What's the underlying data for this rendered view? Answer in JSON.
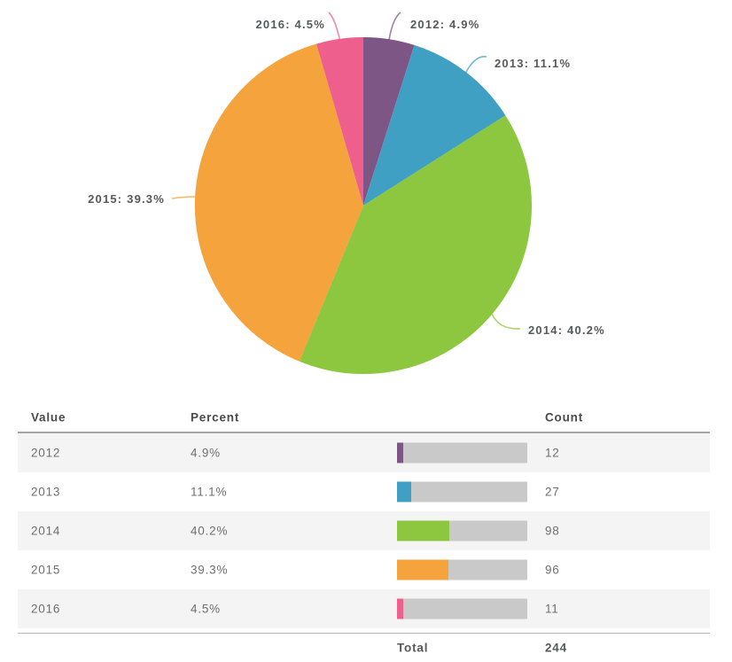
{
  "chart_data": {
    "type": "pie",
    "start_angle_deg": 0,
    "direction": "clockwise",
    "label_format": "{label}: {percent}%",
    "slices": [
      {
        "label": "2012",
        "percent": 4.9,
        "count": 12,
        "color": "#7e5686"
      },
      {
        "label": "2013",
        "percent": 11.1,
        "count": 27,
        "color": "#3fa0c3"
      },
      {
        "label": "2014",
        "percent": 40.2,
        "count": 98,
        "color": "#8dc63f"
      },
      {
        "label": "2015",
        "percent": 39.3,
        "count": 96,
        "color": "#f5a33c"
      },
      {
        "label": "2016",
        "percent": 4.5,
        "count": 11,
        "color": "#ee5f8d"
      }
    ],
    "total": 244,
    "legend_position": "none",
    "grid": false
  },
  "table": {
    "headers": {
      "value": "Value",
      "percent": "Percent",
      "count": "Count"
    },
    "rows": [
      {
        "value": "2012",
        "percent": "4.9%",
        "bar_percent": 4.9,
        "count": "12",
        "color": "#7e5686"
      },
      {
        "value": "2013",
        "percent": "11.1%",
        "bar_percent": 11.1,
        "count": "27",
        "color": "#3fa0c3"
      },
      {
        "value": "2014",
        "percent": "40.2%",
        "bar_percent": 40.2,
        "count": "98",
        "color": "#8dc63f"
      },
      {
        "value": "2015",
        "percent": "39.3%",
        "bar_percent": 39.3,
        "count": "96",
        "color": "#f5a33c"
      },
      {
        "value": "2016",
        "percent": "4.5%",
        "bar_percent": 4.5,
        "count": "11",
        "color": "#ee5f8d"
      }
    ],
    "footer": {
      "label": "Total",
      "count": "244"
    }
  },
  "colors": {
    "bar_background": "#c9c9c9",
    "row_alt_background": "#f4f4f4",
    "pie_label_text": "#58595b",
    "header_text": "#4b4b4b",
    "cell_text": "#6f6f6f"
  }
}
